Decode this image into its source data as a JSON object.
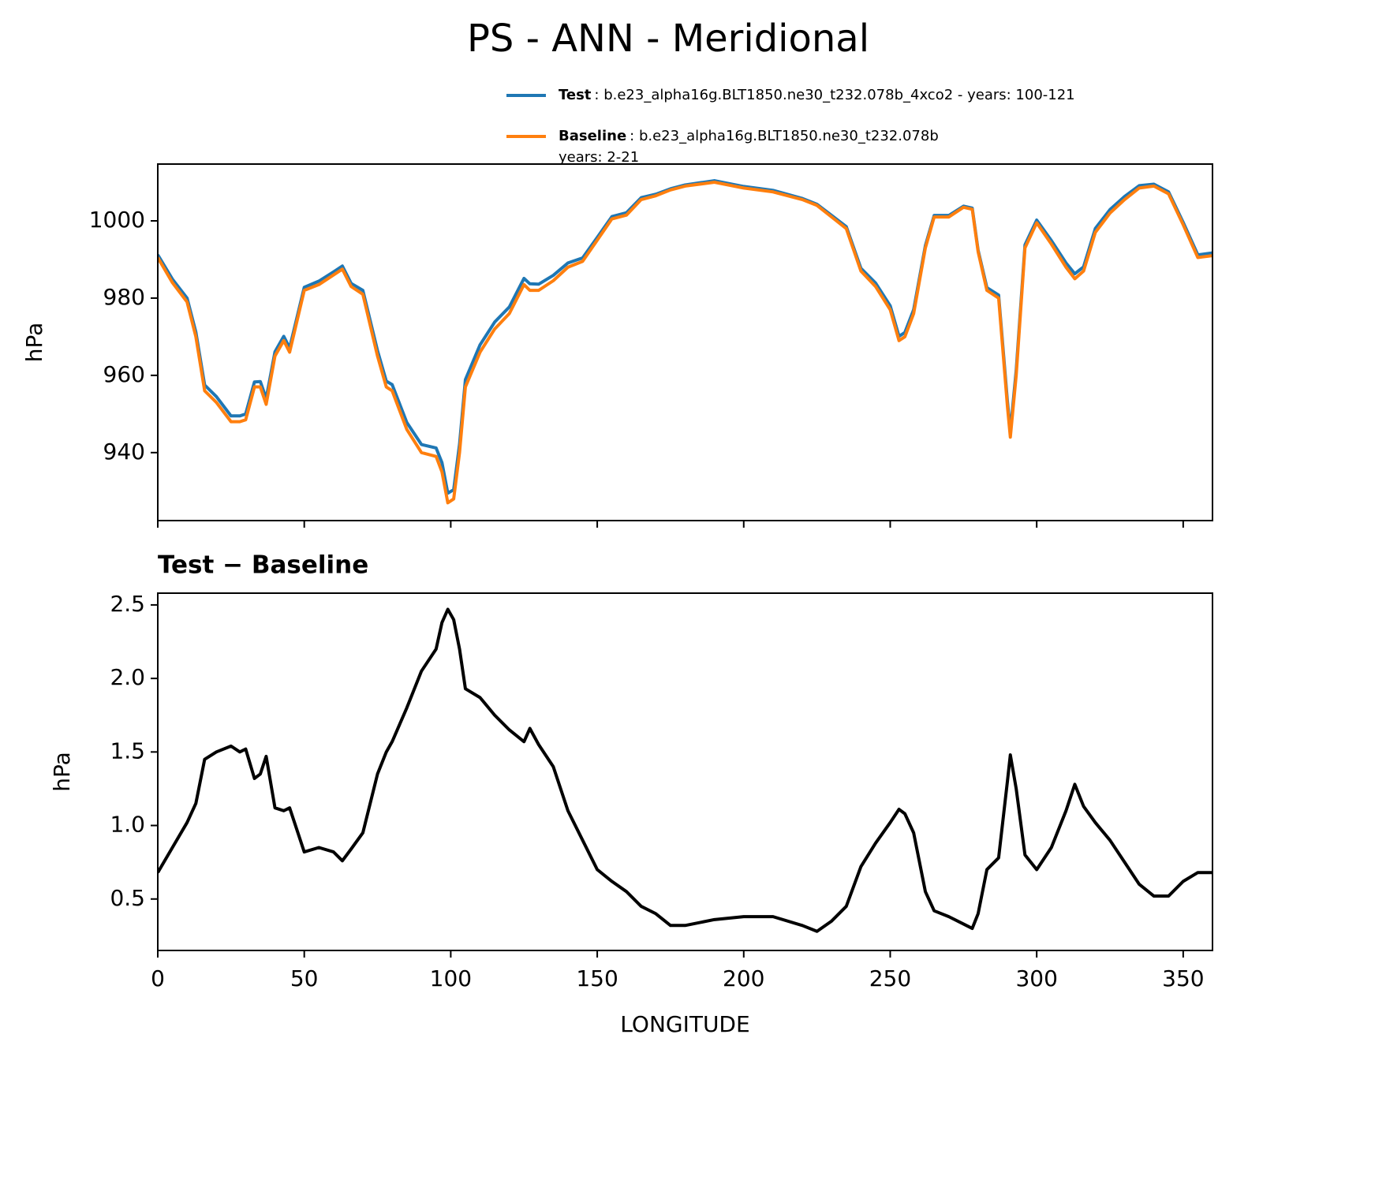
{
  "title": "PS - ANN - Meridional",
  "chart_data": [
    {
      "type": "line",
      "ylabel": "hPa",
      "x": [
        0,
        5,
        10,
        13,
        16,
        20,
        25,
        28,
        30,
        33,
        35,
        37,
        40,
        43,
        45,
        50,
        55,
        60,
        63,
        66,
        70,
        75,
        78,
        80,
        85,
        90,
        95,
        97,
        99,
        101,
        103,
        105,
        110,
        115,
        120,
        125,
        127,
        130,
        135,
        140,
        145,
        150,
        155,
        160,
        165,
        170,
        175,
        180,
        190,
        200,
        210,
        220,
        225,
        230,
        235,
        240,
        245,
        250,
        253,
        255,
        258,
        262,
        265,
        270,
        275,
        278,
        280,
        283,
        287,
        290,
        291,
        293,
        296,
        300,
        305,
        310,
        313,
        316,
        320,
        325,
        330,
        335,
        340,
        345,
        350,
        355,
        360
      ],
      "series": [
        {
          "name": "Test",
          "label": [
            ": b.e23_alpha16g.BLT1850.ne30_t232.078b_4xco2 - years: 100-121"
          ],
          "color": "#1f77b4",
          "values": [
            991.2,
            984.9,
            980.0,
            971.2,
            957.5,
            954.5,
            949.5,
            949.5,
            950.0,
            958.3,
            958.4,
            954.0,
            966.1,
            970.1,
            967.1,
            982.8,
            984.4,
            986.8,
            988.3,
            983.8,
            982.0,
            966.4,
            958.5,
            957.6,
            947.8,
            942.1,
            941.2,
            937.4,
            929.5,
            930.4,
            942.2,
            958.9,
            967.9,
            973.8,
            977.7,
            985.1,
            983.7,
            983.6,
            985.9,
            989.1,
            990.4,
            995.7,
            1001.1,
            1002.1,
            1006.0,
            1006.9,
            1008.3,
            1009.3,
            1010.4,
            1008.9,
            1007.9,
            1005.8,
            1004.3,
            1001.4,
            998.5,
            987.7,
            983.9,
            978.0,
            970.1,
            971.1,
            977.0,
            993.6,
            1001.4,
            1001.4,
            1003.8,
            1003.3,
            992.4,
            982.7,
            980.8,
            953.3,
            945.5,
            961.3,
            993.8,
            1000.2,
            994.9,
            989.1,
            986.3,
            988.1,
            998.0,
            1002.9,
            1006.3,
            1009.1,
            1009.5,
            1007.5,
            999.6,
            991.2,
            991.7
          ]
        },
        {
          "name": "Baseline",
          "label": [
            ": b.e23_alpha16g.BLT1850.ne30_t232.078b",
            "years: 2-21"
          ],
          "color": "#ff7f0e",
          "values": [
            990.5,
            984,
            979,
            970,
            956,
            953,
            948,
            948,
            948.5,
            957,
            957,
            952.5,
            965,
            969,
            966,
            982,
            983.5,
            986,
            987.5,
            983,
            981,
            965,
            957,
            956,
            946,
            940,
            939,
            935,
            927,
            928,
            940,
            957,
            966,
            972,
            976,
            983.5,
            982,
            982,
            984.5,
            988,
            989.5,
            995,
            1000.5,
            1001.5,
            1005.5,
            1006.5,
            1008,
            1009,
            1010,
            1008.5,
            1007.5,
            1005.5,
            1004,
            1001,
            998,
            987,
            983,
            977,
            969,
            970,
            976,
            993,
            1001,
            1001,
            1003.5,
            1003,
            992,
            982,
            980,
            952,
            944,
            960,
            993,
            999.5,
            994,
            988,
            985,
            987,
            997,
            1002,
            1005.5,
            1008.5,
            1009,
            1007,
            999,
            990.5,
            991
          ]
        }
      ],
      "xlim": [
        0,
        360
      ],
      "xticks": [
        0,
        50,
        100,
        150,
        200,
        250,
        300,
        350
      ],
      "ylim": [
        922.4,
        1014.7
      ],
      "yticks": [
        940,
        960,
        980,
        1000
      ]
    },
    {
      "type": "line",
      "title": "Test − Baseline",
      "xlabel": "LONGITUDE",
      "ylabel": "hPa",
      "x": [
        0,
        5,
        10,
        13,
        16,
        20,
        25,
        28,
        30,
        33,
        35,
        37,
        40,
        43,
        45,
        50,
        55,
        60,
        63,
        66,
        70,
        75,
        78,
        80,
        85,
        90,
        95,
        97,
        99,
        101,
        103,
        105,
        110,
        115,
        120,
        125,
        127,
        130,
        135,
        140,
        145,
        150,
        155,
        160,
        165,
        170,
        175,
        180,
        190,
        200,
        210,
        220,
        225,
        230,
        235,
        240,
        245,
        250,
        253,
        255,
        258,
        262,
        265,
        270,
        275,
        278,
        280,
        283,
        287,
        290,
        291,
        293,
        296,
        300,
        305,
        310,
        313,
        316,
        320,
        325,
        330,
        335,
        340,
        345,
        350,
        355,
        360
      ],
      "series": [
        {
          "color": "#000000",
          "values": [
            0.68,
            0.85,
            1.02,
            1.15,
            1.45,
            1.5,
            1.54,
            1.5,
            1.52,
            1.32,
            1.35,
            1.47,
            1.12,
            1.1,
            1.12,
            0.82,
            0.85,
            0.82,
            0.76,
            0.84,
            0.95,
            1.35,
            1.5,
            1.57,
            1.8,
            2.05,
            2.2,
            2.38,
            2.47,
            2.4,
            2.2,
            1.93,
            1.87,
            1.75,
            1.65,
            1.57,
            1.66,
            1.55,
            1.4,
            1.1,
            0.9,
            0.7,
            0.62,
            0.55,
            0.45,
            0.4,
            0.32,
            0.32,
            0.36,
            0.38,
            0.38,
            0.32,
            0.28,
            0.35,
            0.45,
            0.72,
            0.88,
            1.02,
            1.11,
            1.08,
            0.95,
            0.55,
            0.42,
            0.38,
            0.33,
            0.3,
            0.4,
            0.7,
            0.78,
            1.3,
            1.48,
            1.25,
            0.8,
            0.7,
            0.85,
            1.1,
            1.28,
            1.13,
            1.02,
            0.9,
            0.75,
            0.6,
            0.52,
            0.52,
            0.62,
            0.68,
            0.68
          ]
        }
      ],
      "xlim": [
        0,
        360
      ],
      "xticks": [
        0,
        50,
        100,
        150,
        200,
        250,
        300,
        350
      ],
      "ylim": [
        0.15,
        2.58
      ],
      "yticks": [
        {
          "value": 0.5,
          "label": "0.5"
        },
        {
          "value": 1,
          "label": "1.0"
        },
        1.5,
        {
          "value": 2,
          "label": "2.0"
        },
        2.5
      ]
    }
  ]
}
